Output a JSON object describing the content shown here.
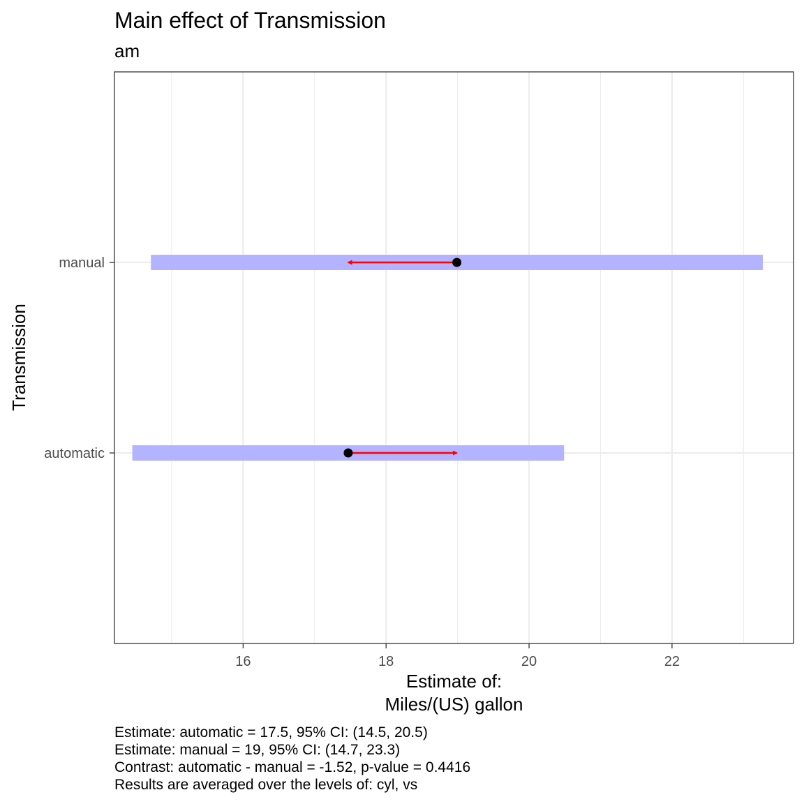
{
  "chart_data": {
    "type": "interval",
    "title": "Main effect of Transmission",
    "subtitle": "am",
    "xlabel": [
      "Estimate of:",
      "Miles/(US) gallon"
    ],
    "ylabel": "Transmission",
    "xlim": [
      14.2,
      23.7
    ],
    "x_ticks": [
      16,
      18,
      20,
      22
    ],
    "x_minor_ticks": [
      15,
      17,
      19,
      21,
      23
    ],
    "categories": [
      "automatic",
      "manual"
    ],
    "estimates": [
      {
        "level": "automatic",
        "estimate": 17.47,
        "ci_low": 14.45,
        "ci_high": 20.49,
        "arrow_to": 18.99
      },
      {
        "level": "manual",
        "estimate": 18.99,
        "ci_low": 14.71,
        "ci_high": 23.27,
        "arrow_to": 17.47
      }
    ],
    "colors": {
      "ci_band": "#b3b3ff",
      "point": "#000000",
      "arrow": "#ff0000"
    },
    "grid": true,
    "caption": [
      "Estimate: automatic = 17.5, 95% CI: (14.5, 20.5)",
      "Estimate: manual = 19, 95% CI: (14.7, 23.3)",
      "Contrast: automatic - manual = -1.52, p-value = 0.4416",
      "Results are averaged over the levels of: cyl, vs"
    ]
  }
}
